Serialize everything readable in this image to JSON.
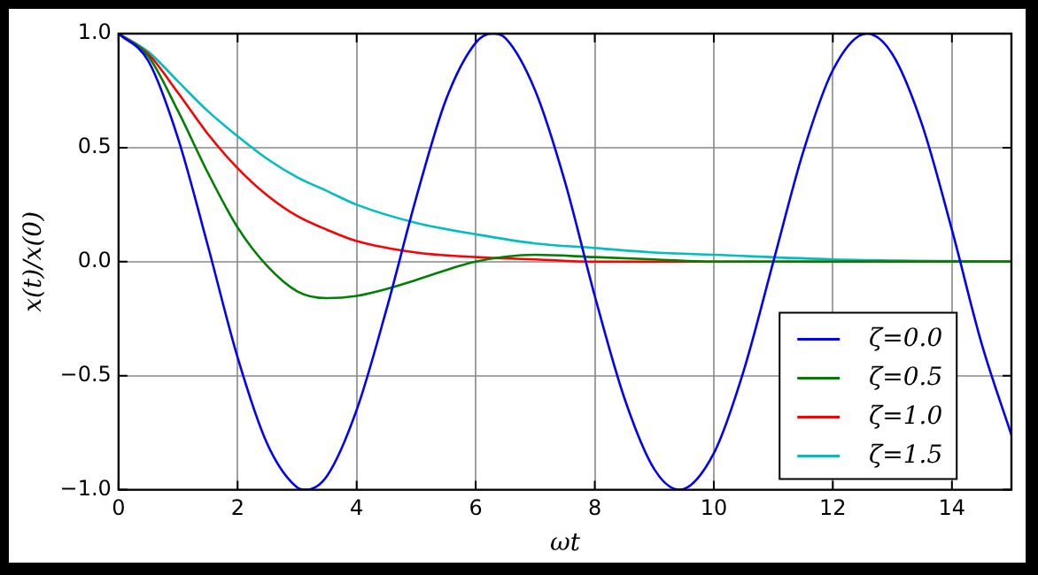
{
  "chart_data": {
    "type": "line",
    "xlabel": "ωt",
    "ylabel": "x(t)/x(0)",
    "xlim": [
      0,
      15
    ],
    "xticks": [
      0,
      2,
      4,
      6,
      8,
      10,
      12,
      14
    ],
    "ylim": [
      -1,
      1
    ],
    "yticks": [
      {
        "value": -1,
        "label": "−1.0"
      },
      {
        "value": -0.5,
        "label": "−0.5"
      },
      {
        "value": 0,
        "label": "0.0"
      },
      {
        "value": 0.5,
        "label": "0.5"
      },
      {
        "value": 1,
        "label": "1.0"
      }
    ],
    "grid": true,
    "legend": "lower right",
    "marker": "none",
    "line_style": "solid",
    "series": [
      {
        "name": "ζ=0.0",
        "color": "#0000ff",
        "x": [
          0,
          0.5,
          1,
          1.5,
          2,
          2.5,
          3,
          3.14,
          3.5,
          4,
          4.5,
          5,
          5.5,
          6,
          6.28,
          6.5,
          7,
          7.5,
          8,
          8.5,
          9,
          9.42,
          10,
          10.5,
          11,
          11.5,
          12,
          12.57,
          13,
          13.5,
          14,
          14.5,
          15
        ],
        "values": [
          1,
          0.88,
          0.54,
          0.07,
          -0.42,
          -0.8,
          -0.99,
          -1,
          -0.94,
          -0.65,
          -0.21,
          0.28,
          0.71,
          0.96,
          1,
          0.98,
          0.75,
          0.35,
          -0.15,
          -0.6,
          -0.91,
          -1,
          -0.84,
          -0.48,
          0,
          0.48,
          0.84,
          1,
          0.91,
          0.6,
          0.14,
          -0.36,
          -0.76
        ]
      },
      {
        "name": "ζ=0.5",
        "color": "#008000",
        "x": [
          0,
          0.5,
          1,
          1.5,
          2,
          2.5,
          3,
          3.5,
          4,
          4.5,
          5,
          6,
          7,
          8,
          9,
          10,
          12,
          15
        ],
        "values": [
          1,
          0.9,
          0.66,
          0.39,
          0.15,
          -0.02,
          -0.13,
          -0.16,
          -0.15,
          -0.12,
          -0.08,
          0,
          0.03,
          0.02,
          0.01,
          0,
          0,
          0
        ]
      },
      {
        "name": "ζ=1.0",
        "color": "#ff0000",
        "x": [
          0,
          0.5,
          1,
          1.5,
          2,
          2.5,
          3,
          3.5,
          4,
          5,
          6,
          7,
          8,
          10,
          15
        ],
        "values": [
          1,
          0.91,
          0.74,
          0.56,
          0.41,
          0.29,
          0.2,
          0.14,
          0.09,
          0.04,
          0.02,
          0.01,
          0,
          0,
          0
        ]
      },
      {
        "name": "ζ=1.5",
        "color": "#00bfbf",
        "x": [
          0,
          0.5,
          1,
          1.5,
          2,
          2.5,
          3,
          3.5,
          4,
          5,
          6,
          7,
          8,
          9,
          10,
          12,
          15
        ],
        "values": [
          1,
          0.92,
          0.79,
          0.66,
          0.55,
          0.45,
          0.37,
          0.31,
          0.25,
          0.17,
          0.12,
          0.08,
          0.06,
          0.04,
          0.03,
          0.01,
          0
        ]
      }
    ]
  }
}
